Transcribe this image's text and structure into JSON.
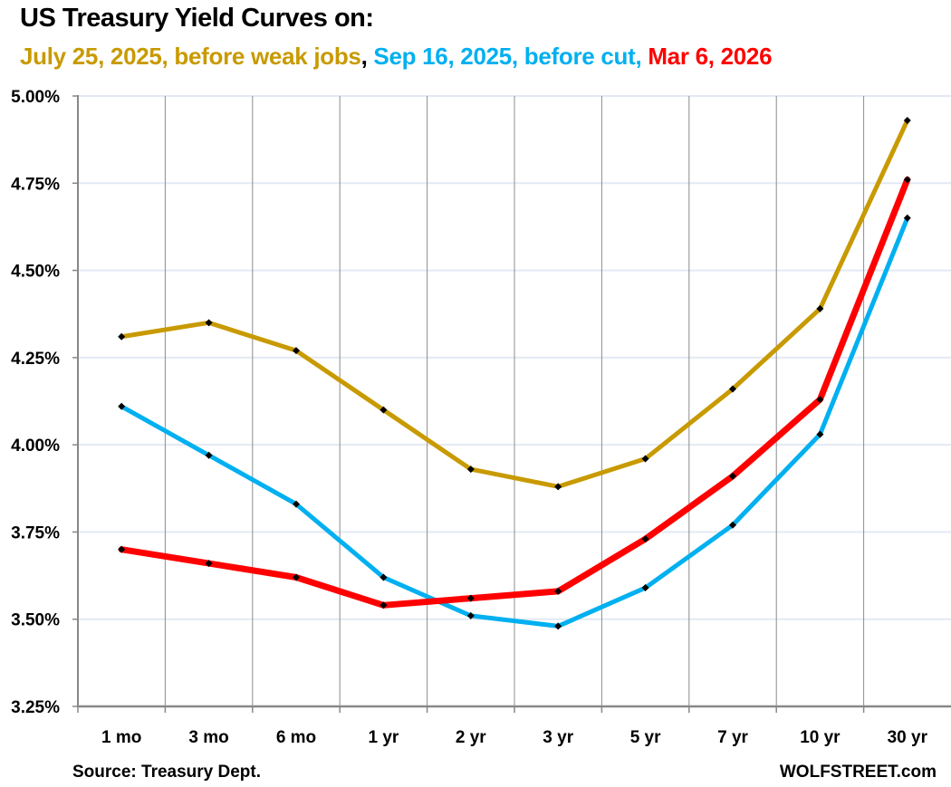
{
  "header": {
    "title": "US Treasury Yield Curves on:",
    "subtitle_parts": [
      {
        "text": "July 25, 2025, before weak jobs",
        "color": "#C89A00"
      },
      {
        "text": ", ",
        "color": "#000000"
      },
      {
        "text": "Sep 16, 2025, before cut, ",
        "color": "#00B0F0"
      },
      {
        "text": "Mar 6, 2026",
        "color": "#FF0000"
      }
    ]
  },
  "footer": {
    "source": "Source: Treasury Dept.",
    "brand": "WOLFSTREET.com"
  },
  "chart_data": {
    "type": "line",
    "title": "US Treasury Yield Curves on: July 25, 2025, before weak jobs, Sep 16, 2025, before cut, Mar 6, 2026",
    "xlabel": "",
    "ylabel": "",
    "categories": [
      "1 mo",
      "3 mo",
      "6 mo",
      "1 yr",
      "2 yr",
      "3 yr",
      "5 yr",
      "7 yr",
      "10 yr",
      "30 yr"
    ],
    "ylim": [
      3.25,
      5.0
    ],
    "yticks": [
      3.25,
      3.5,
      3.75,
      4.0,
      4.25,
      4.5,
      4.75,
      5.0
    ],
    "ytick_labels": [
      "3.25%",
      "3.50%",
      "3.75%",
      "4.00%",
      "4.25%",
      "4.50%",
      "4.75%",
      "5.00%"
    ],
    "grid": true,
    "legend": "none (series identified by colored subtitle)",
    "series": [
      {
        "name": "July 25, 2025, before weak jobs",
        "color": "#C89A00",
        "values": [
          4.31,
          4.35,
          4.27,
          4.1,
          3.93,
          3.88,
          3.96,
          4.16,
          4.39,
          4.93
        ]
      },
      {
        "name": "Sep 16, 2025, before cut",
        "color": "#00B0F0",
        "values": [
          4.11,
          3.97,
          3.83,
          3.62,
          3.51,
          3.48,
          3.59,
          3.77,
          4.03,
          4.65
        ]
      },
      {
        "name": "Mar 6, 2026",
        "color": "#FF0000",
        "values": [
          3.7,
          3.66,
          3.62,
          3.54,
          3.56,
          3.58,
          3.73,
          3.91,
          4.13,
          4.76
        ]
      }
    ]
  }
}
